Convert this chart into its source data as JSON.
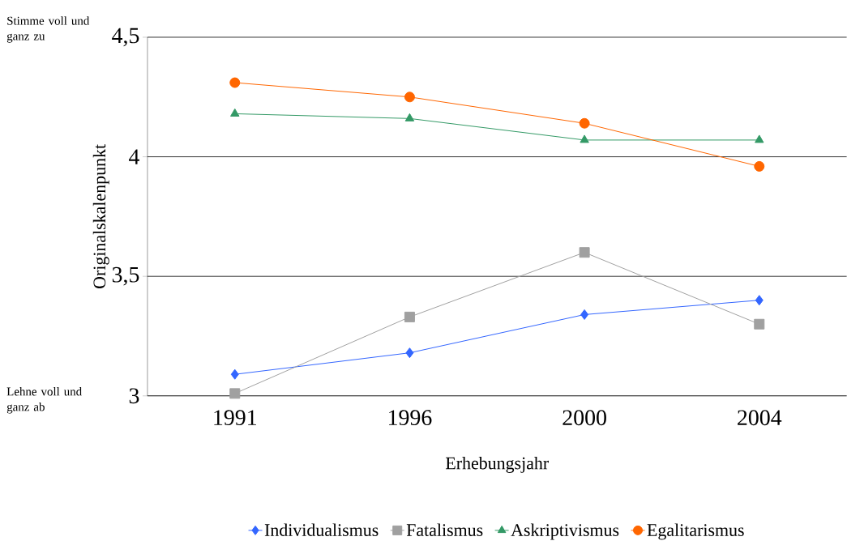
{
  "chart_data": {
    "type": "line",
    "xlabel": "Erhebungsjahr",
    "ylabel": "Originalskalenpunkt",
    "categories": [
      "1991",
      "1996",
      "2000",
      "2004"
    ],
    "series": [
      {
        "name": "Individualismus",
        "color": "#3366ff",
        "marker": "diamond",
        "values": [
          3.09,
          3.18,
          3.34,
          3.4
        ]
      },
      {
        "name": "Fatalismus",
        "color": "#a0a0a0",
        "marker": "square",
        "values": [
          3.01,
          3.33,
          3.6,
          3.3
        ]
      },
      {
        "name": "Askriptivismus",
        "color": "#339966",
        "marker": "triangle",
        "values": [
          4.18,
          4.16,
          4.07,
          4.07
        ]
      },
      {
        "name": "Egalitarismus",
        "color": "#ff6600",
        "marker": "circle",
        "values": [
          4.31,
          4.25,
          4.14,
          3.96
        ]
      }
    ],
    "ylim": [
      3,
      4.5
    ],
    "yticks": [
      3,
      {
        "value": 3.5,
        "label": "3,5"
      },
      4,
      {
        "value": 4.5,
        "label": "4,5"
      }
    ],
    "grid": "y",
    "legend": "bottom",
    "line_style": "solid",
    "annotations": [
      "Stimme voll und ganz zu",
      "Lehne voll und ganz ab"
    ]
  }
}
